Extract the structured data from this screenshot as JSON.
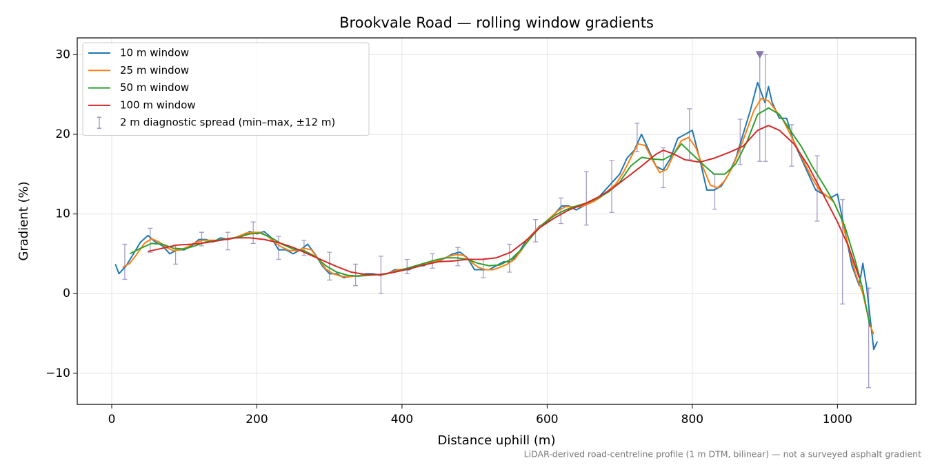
{
  "chart_data": {
    "type": "line",
    "title": "Brookvale Road — rolling window gradients",
    "x_label": "Distance uphill (m)",
    "y_label": "Gradient (%)",
    "annotation": "LiDAR-derived road-centreline profile (1 m DTM, bilinear) — not a surveyed asphalt gradient",
    "xlim": [
      -47.5,
      1108
    ],
    "ylim": [
      -13.9,
      32.1
    ],
    "xticks": [
      0,
      200,
      400,
      600,
      800,
      1000
    ],
    "yticks": [
      {
        "value": -10,
        "label": "−10"
      },
      0,
      10,
      20,
      30
    ],
    "grid": true,
    "legend": "upper left",
    "series": [
      {
        "name": "10 m window",
        "color": "#1f77b4",
        "x": [
          5,
          10,
          20,
          30,
          40,
          50,
          60,
          70,
          80,
          90,
          100,
          110,
          120,
          130,
          140,
          150,
          160,
          170,
          180,
          190,
          200,
          210,
          220,
          230,
          240,
          250,
          260,
          270,
          280,
          290,
          300,
          310,
          320,
          330,
          340,
          350,
          360,
          370,
          380,
          390,
          400,
          410,
          420,
          430,
          440,
          450,
          460,
          470,
          480,
          490,
          500,
          510,
          520,
          530,
          540,
          550,
          560,
          570,
          580,
          590,
          600,
          610,
          620,
          630,
          640,
          650,
          660,
          670,
          680,
          690,
          700,
          710,
          720,
          730,
          740,
          750,
          760,
          770,
          780,
          790,
          800,
          810,
          820,
          830,
          840,
          850,
          860,
          870,
          880,
          890,
          900,
          905,
          910,
          920,
          930,
          940,
          950,
          960,
          970,
          980,
          990,
          1000,
          1010,
          1020,
          1030,
          1035,
          1040,
          1050,
          1055
        ],
        "values": [
          3.7,
          2.5,
          3.5,
          5,
          6.5,
          7.3,
          6.5,
          6,
          5,
          5.5,
          5.5,
          6,
          6.8,
          6.8,
          6.5,
          7,
          6.8,
          7,
          7.2,
          7.8,
          7.5,
          7.8,
          7,
          5.5,
          5.5,
          5,
          5.5,
          6.2,
          5,
          3.5,
          2.5,
          2.5,
          2,
          2.2,
          2.2,
          2.5,
          2.5,
          2.3,
          2.5,
          3,
          3,
          3,
          3.5,
          3.5,
          4,
          4,
          4.5,
          5,
          5.2,
          4.5,
          3,
          3,
          3,
          3.5,
          4,
          4,
          5,
          6.5,
          7.5,
          8.5,
          9,
          10,
          11,
          11,
          10.5,
          11,
          11.5,
          12,
          13,
          14,
          15,
          17,
          18,
          20,
          18,
          16,
          15.5,
          17,
          19.5,
          20,
          20.5,
          17,
          13,
          13,
          13.5,
          15,
          17,
          20,
          23,
          26.5,
          24,
          26,
          24,
          22,
          22,
          19,
          17,
          15,
          13,
          12.5,
          12,
          12.5,
          8,
          3.5,
          1,
          3.8,
          1,
          -7,
          -6
        ]
      },
      {
        "name": "25 m window",
        "color": "#ff7f0e",
        "x": [
          15,
          25,
          35,
          45,
          55,
          65,
          75,
          85,
          95,
          105,
          115,
          125,
          135,
          145,
          155,
          165,
          175,
          185,
          195,
          205,
          215,
          225,
          235,
          245,
          255,
          265,
          275,
          285,
          295,
          305,
          315,
          325,
          335,
          345,
          355,
          365,
          375,
          385,
          395,
          405,
          415,
          425,
          435,
          445,
          455,
          465,
          475,
          485,
          495,
          505,
          515,
          525,
          535,
          545,
          555,
          565,
          575,
          585,
          595,
          605,
          615,
          625,
          635,
          645,
          655,
          665,
          675,
          685,
          695,
          705,
          715,
          725,
          735,
          745,
          755,
          765,
          775,
          785,
          795,
          805,
          815,
          825,
          835,
          845,
          855,
          865,
          875,
          885,
          895,
          905,
          915,
          925,
          935,
          945,
          955,
          965,
          975,
          985,
          995,
          1005,
          1015,
          1025,
          1035,
          1045,
          1050
        ],
        "values": [
          3.3,
          3.8,
          5,
          6.3,
          6.9,
          6.5,
          5.8,
          5.4,
          5.5,
          5.9,
          6.4,
          6.7,
          6.7,
          6.7,
          6.8,
          6.9,
          7.2,
          7.6,
          7.7,
          7.7,
          7.2,
          6.4,
          5.8,
          5.4,
          5.4,
          5.7,
          5.5,
          4.3,
          3.1,
          2.5,
          2.2,
          2.1,
          2.2,
          2.3,
          2.4,
          2.4,
          2.4,
          2.7,
          3,
          3.1,
          3.3,
          3.5,
          3.8,
          4,
          4.3,
          4.7,
          4.9,
          4.8,
          4,
          3.3,
          3,
          3,
          3.3,
          3.7,
          4.3,
          5.5,
          7,
          8,
          8.8,
          9.6,
          10.4,
          10.9,
          10.9,
          10.9,
          11.2,
          11.6,
          12.2,
          13,
          13.8,
          15.2,
          17,
          18.8,
          18.6,
          16.8,
          15.2,
          15.6,
          17.6,
          19.2,
          19.6,
          18.3,
          15.8,
          13.6,
          13.3,
          14.2,
          15.8,
          18,
          20.5,
          23,
          24.5,
          24.2,
          23,
          21.8,
          20,
          18.2,
          16.3,
          14.5,
          13,
          12.3,
          11.5,
          9.5,
          6,
          2.5,
          0,
          -4,
          -5.1
        ]
      },
      {
        "name": "50 m window",
        "color": "#2ca02c",
        "x": [
          25,
          40,
          55,
          70,
          85,
          100,
          115,
          130,
          145,
          160,
          175,
          190,
          205,
          220,
          235,
          250,
          265,
          280,
          295,
          310,
          325,
          340,
          355,
          370,
          385,
          400,
          415,
          430,
          445,
          460,
          475,
          490,
          505,
          520,
          535,
          550,
          565,
          580,
          595,
          610,
          625,
          640,
          655,
          670,
          685,
          700,
          715,
          730,
          745,
          760,
          775,
          785,
          800,
          815,
          830,
          845,
          860,
          875,
          890,
          905,
          920,
          935,
          950,
          965,
          980,
          995,
          1010,
          1025,
          1035,
          1045
        ],
        "values": [
          5,
          5.7,
          6.3,
          6.2,
          5.7,
          5.6,
          6,
          6.5,
          6.7,
          6.9,
          7.1,
          7.5,
          7.6,
          7,
          6.2,
          5.6,
          5.4,
          4.7,
          3.5,
          2.7,
          2.3,
          2.2,
          2.3,
          2.4,
          2.6,
          3,
          3.4,
          3.8,
          4.2,
          4.5,
          4.5,
          4.3,
          3.8,
          3.5,
          3.6,
          4.3,
          5.6,
          7.3,
          8.8,
          9.8,
          10.5,
          11,
          11.4,
          12,
          12.8,
          14,
          16,
          17.1,
          16.9,
          16.8,
          17.6,
          18.8,
          17.5,
          16.2,
          15,
          15,
          16.3,
          19,
          22.5,
          23.3,
          22.5,
          20.5,
          18.5,
          16,
          13.8,
          11.5,
          8.5,
          4,
          0.5,
          -4.2
        ]
      },
      {
        "name": "100 m window",
        "color": "#d62728",
        "x": [
          50,
          70,
          90,
          110,
          130,
          150,
          170,
          190,
          210,
          230,
          250,
          270,
          290,
          310,
          330,
          350,
          370,
          390,
          410,
          430,
          450,
          470,
          490,
          510,
          530,
          550,
          570,
          590,
          610,
          630,
          650,
          670,
          690,
          710,
          730,
          750,
          760,
          775,
          790,
          810,
          830,
          850,
          870,
          890,
          905,
          920,
          940,
          960,
          980,
          1000,
          1015,
          1030
        ],
        "values": [
          5.3,
          5.7,
          6.1,
          6.2,
          6.4,
          6.7,
          7,
          7,
          6.8,
          6.4,
          5.8,
          5,
          4.2,
          3.4,
          2.7,
          2.4,
          2.4,
          2.7,
          3.1,
          3.6,
          4,
          4.1,
          4.3,
          4.3,
          4.5,
          5.2,
          6.6,
          8.3,
          9.5,
          10.5,
          11.2,
          12.1,
          13.2,
          14.6,
          16,
          17.5,
          18,
          17.5,
          16.8,
          16.5,
          17,
          17.7,
          18.5,
          20.5,
          21.1,
          20.5,
          18.8,
          16,
          12.5,
          9,
          6,
          2
        ]
      }
    ],
    "error_bars": {
      "name": "2 m diagnostic spread (min–max, ±12 m)",
      "color": "#9a8fbf",
      "x": [
        18,
        53,
        88,
        124,
        160,
        195,
        230,
        265,
        300,
        336,
        371,
        407,
        442,
        477,
        512,
        548,
        584,
        619,
        654,
        689,
        724,
        760,
        796,
        831,
        866,
        893,
        901,
        937,
        972,
        1007,
        1043
      ],
      "low": [
        1.8,
        5.2,
        3.7,
        6,
        5.5,
        6.3,
        4.3,
        4.8,
        1.7,
        1,
        0,
        2.5,
        3.2,
        3.5,
        2,
        2.7,
        6.5,
        8.8,
        8.6,
        10.2,
        17.8,
        13.3,
        16.8,
        10.6,
        16.2,
        16.6,
        16.6,
        16,
        9.1,
        -1.3,
        -11.8
      ],
      "high": [
        6.2,
        8.2,
        6.1,
        7.7,
        7.7,
        9,
        7.2,
        6.7,
        5.2,
        3.7,
        4.7,
        4.3,
        5,
        5.8,
        4.3,
        6.2,
        9.3,
        12,
        15.3,
        16.7,
        21.4,
        18.3,
        23.2,
        15,
        21.9,
        30,
        30,
        21.2,
        17.3,
        11.8,
        0.7
      ]
    },
    "peak_marker": {
      "x": 893,
      "y": 30,
      "color": "#8877aa"
    }
  }
}
